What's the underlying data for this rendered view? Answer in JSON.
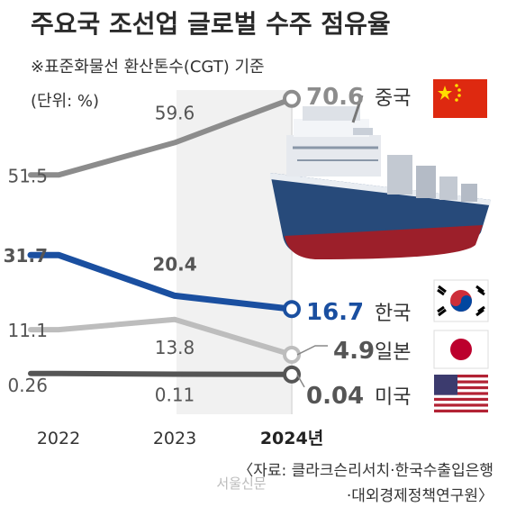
{
  "chart_data": {
    "type": "line",
    "title": "주요국 조선업 글로벌 수주 점유율",
    "subtitle": "※표준화물선 환산톤수(CGT) 기준",
    "unit_label": "(단위: %)",
    "categories": [
      "2022",
      "2023",
      "2024년"
    ],
    "series": [
      {
        "name": "중국",
        "values": [
          51.5,
          59.6,
          70.6
        ],
        "labels": [
          "51.5",
          "59.6",
          "70.6"
        ],
        "color": "#8c8c8c",
        "flag": "china-flag-icon"
      },
      {
        "name": "한국",
        "values": [
          31.7,
          20.4,
          16.7
        ],
        "labels": [
          "31.7",
          "20.4",
          "16.7"
        ],
        "color": "#1a4fa0",
        "flag": "korea-flag-icon"
      },
      {
        "name": "일본",
        "values": [
          11.1,
          13.8,
          4.9
        ],
        "labels": [
          "11.1",
          "13.8",
          "4.9"
        ],
        "color": "#bdbdbd",
        "flag": "japan-flag-icon"
      },
      {
        "name": "미국",
        "values": [
          0.26,
          0.11,
          0.04
        ],
        "labels": [
          "0.26",
          "0.11",
          "0.04"
        ],
        "color": "#555555",
        "flag": "usa-flag-icon"
      }
    ],
    "source_line1": "〈자료: 클라크슨리서치·한국수출입은행",
    "source_line2": "·대외경제정책연구원〉",
    "watermark": "서울신문"
  }
}
